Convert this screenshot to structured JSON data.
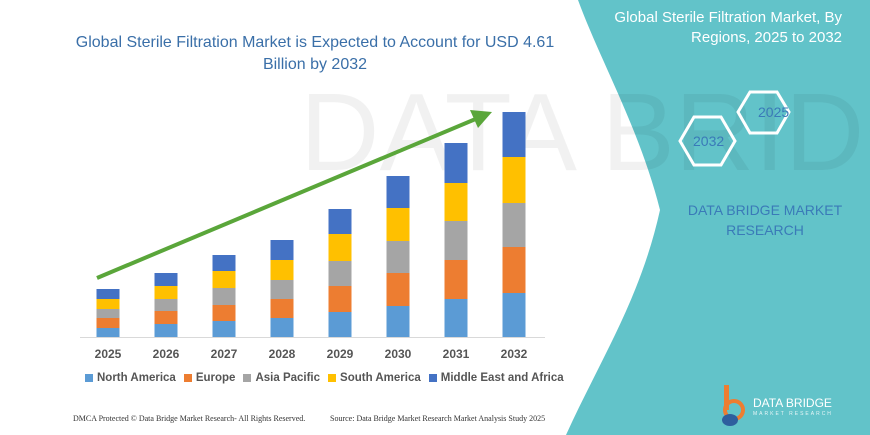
{
  "header": {
    "title": "Global Sterile Filtration Market is Expected to Account for USD 4.61 Billion by 2032",
    "side_title": "Global Sterile Filtration Market, By Regions, 2025 to 2032",
    "hex_labels": [
      "2025",
      "2032"
    ],
    "brand": "DATA BRIDGE MARKET RESEARCH"
  },
  "footer": {
    "dmca": "DMCA Protected © Data Bridge Market Research- All Rights Reserved.",
    "source": "Source: Data Bridge Market Research Market Analysis Study 2025",
    "logo_text": "DATA BRIDGE",
    "logo_sub": "MARKET RESEARCH"
  },
  "colors": {
    "panel": "#62c3c9",
    "arrow": "#5aa63a",
    "title": "#3a6fa8"
  },
  "chart_data": {
    "type": "bar",
    "stacked": true,
    "title": "",
    "xlabel": "",
    "ylabel": "",
    "categories": [
      "2025",
      "2026",
      "2027",
      "2028",
      "2029",
      "2030",
      "2031",
      "2032"
    ],
    "legend_position": "bottom",
    "grid": false,
    "trend_arrow": true,
    "series": [
      {
        "name": "North America",
        "color": "#5b9bd5",
        "values": [
          9,
          13,
          16,
          19,
          25,
          31,
          38,
          44
        ]
      },
      {
        "name": "Europe",
        "color": "#ed7d31",
        "values": [
          10,
          13,
          16,
          19,
          26,
          33,
          39,
          46
        ]
      },
      {
        "name": "Asia Pacific",
        "color": "#a5a5a5",
        "values": [
          9,
          12,
          17,
          19,
          25,
          32,
          39,
          44
        ]
      },
      {
        "name": "South America",
        "color": "#ffc000",
        "values": [
          10,
          13,
          17,
          20,
          27,
          33,
          38,
          46
        ]
      },
      {
        "name": "Middle East and Africa",
        "color": "#4472c4",
        "values": [
          10,
          13,
          16,
          20,
          25,
          32,
          40,
          45
        ]
      }
    ]
  }
}
